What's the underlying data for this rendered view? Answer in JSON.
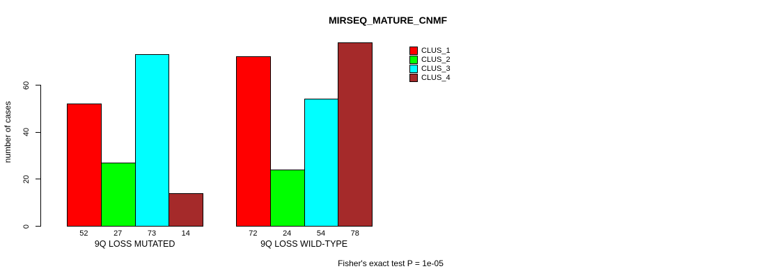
{
  "chart_data": {
    "type": "bar",
    "title": "MIRSEQ_MATURE_CNMF",
    "ylabel": "number of cases",
    "xlabel": "",
    "annotation": "Fisher's exact test P = 1e-05",
    "yticks": [
      0,
      20,
      40,
      60
    ],
    "ylim": [
      0,
      78
    ],
    "grid": false,
    "legend_position": "top-right",
    "series": [
      {
        "name": "CLUS_1",
        "color": "#ff0000"
      },
      {
        "name": "CLUS_2",
        "color": "#00ff00"
      },
      {
        "name": "CLUS_3",
        "color": "#00ffff"
      },
      {
        "name": "CLUS_4",
        "color": "#a52a2a"
      }
    ],
    "groups": [
      {
        "label": "9Q LOSS MUTATED",
        "values": [
          52,
          27,
          73,
          14
        ]
      },
      {
        "label": "9Q LOSS WILD-TYPE",
        "values": [
          72,
          24,
          54,
          78
        ]
      }
    ]
  }
}
